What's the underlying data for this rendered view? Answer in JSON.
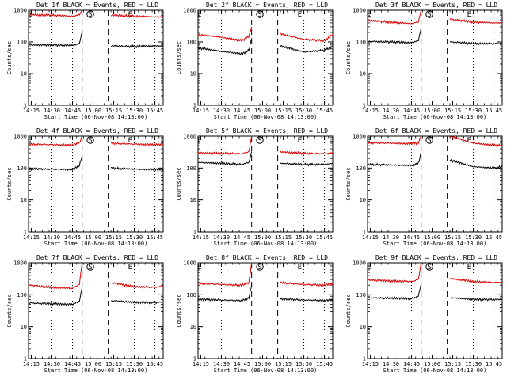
{
  "chart_data": [
    {
      "type": "line",
      "title": "Det 1f BLACK = Events, RED = LLD",
      "xlabel": "Start Time (06-Nov-08 14:13:00)",
      "ylabel": "Counts/sec",
      "yscale": "log",
      "ylim": [
        1,
        1000
      ],
      "xlim": [
        "14:13",
        "15:51"
      ],
      "x_ticks": [
        "14:15",
        "14:30",
        "14:45",
        "15:00",
        "15:15",
        "15:30",
        "15:45"
      ],
      "y_ticks": [
        "1",
        "10",
        "100",
        "1000"
      ],
      "markers": [
        {
          "label": "E",
          "time": "14:14"
        },
        {
          "label": "S",
          "time": "14:58"
        },
        {
          "label": "E",
          "time": "15:27"
        }
      ],
      "dotted_lines": [
        "14:30",
        "14:45",
        "15:30",
        "15:45"
      ],
      "dashed_lines": [
        "14:52",
        "15:11"
      ],
      "gap": [
        "14:52",
        "15:11"
      ],
      "series": [
        {
          "name": "BLACK = Events",
          "color": "#000000",
          "x": [
            "14:13",
            "14:30",
            "14:45",
            "14:50",
            "14:52",
            "15:11",
            "15:13",
            "15:30",
            "15:45",
            "15:51"
          ],
          "y": [
            80,
            80,
            78,
            88,
            210,
            null,
            75,
            72,
            75,
            75
          ]
        },
        {
          "name": "RED = LLD",
          "color": "#dd0000",
          "x": [
            "14:13",
            "14:30",
            "14:45",
            "14:50",
            "14:52",
            "15:11",
            "15:13",
            "15:30",
            "15:45",
            "15:51"
          ],
          "y": [
            720,
            700,
            650,
            720,
            1000,
            null,
            700,
            650,
            620,
            620
          ]
        }
      ]
    },
    {
      "type": "line",
      "title": "Det 2f BLACK = Events, RED = LLD",
      "xlabel": "Start Time (06-Nov-08 14:13:00)",
      "ylabel": "Counts/sec",
      "yscale": "log",
      "ylim": [
        1,
        1000
      ],
      "xlim": [
        "14:13",
        "15:51"
      ],
      "x_ticks": [
        "14:15",
        "14:30",
        "14:45",
        "15:00",
        "15:15",
        "15:30",
        "15:45"
      ],
      "y_ticks": [
        "1",
        "10",
        "100",
        "1000"
      ],
      "markers": [
        {
          "label": "E",
          "time": "14:14"
        },
        {
          "label": "S",
          "time": "14:58"
        },
        {
          "label": "E",
          "time": "15:27"
        }
      ],
      "dotted_lines": [
        "14:30",
        "14:45",
        "15:30",
        "15:45"
      ],
      "dashed_lines": [
        "14:52",
        "15:11"
      ],
      "gap": [
        "14:52",
        "15:11"
      ],
      "series": [
        {
          "name": "BLACK = Events",
          "color": "#000000",
          "x": [
            "14:13",
            "14:30",
            "14:45",
            "14:50",
            "14:52",
            "15:11",
            "15:13",
            "15:30",
            "15:45",
            "15:51"
          ],
          "y": [
            65,
            50,
            42,
            55,
            130,
            null,
            75,
            48,
            55,
            70
          ]
        },
        {
          "name": "RED = LLD",
          "color": "#dd0000",
          "x": [
            "14:13",
            "14:30",
            "14:45",
            "14:50",
            "14:52",
            "15:11",
            "15:13",
            "15:30",
            "15:45",
            "15:51"
          ],
          "y": [
            170,
            140,
            110,
            150,
            300,
            null,
            180,
            120,
            110,
            170
          ]
        }
      ]
    },
    {
      "type": "line",
      "title": "Det 3f BLACK = Events, RED = LLD",
      "xlabel": "Start Time (06-Nov-08 14:13:00)",
      "ylabel": "Counts/sec",
      "yscale": "log",
      "ylim": [
        1,
        1000
      ],
      "xlim": [
        "14:13",
        "15:51"
      ],
      "x_ticks": [
        "14:15",
        "14:30",
        "14:45",
        "15:00",
        "15:15",
        "15:30",
        "15:45"
      ],
      "y_ticks": [
        "1",
        "10",
        "100",
        "1000"
      ],
      "markers": [
        {
          "label": "E",
          "time": "14:14"
        },
        {
          "label": "S",
          "time": "14:58"
        },
        {
          "label": "E",
          "time": "15:27"
        }
      ],
      "dotted_lines": [
        "14:30",
        "14:45",
        "15:30",
        "15:45"
      ],
      "dashed_lines": [
        "14:52",
        "15:11"
      ],
      "gap": [
        "14:52",
        "15:11"
      ],
      "series": [
        {
          "name": "BLACK = Events",
          "color": "#000000",
          "x": [
            "14:13",
            "14:30",
            "14:45",
            "14:50",
            "14:52",
            "15:11",
            "15:13",
            "15:30",
            "15:45",
            "15:51"
          ],
          "y": [
            105,
            100,
            95,
            110,
            280,
            null,
            100,
            90,
            88,
            90
          ]
        },
        {
          "name": "RED = LLD",
          "color": "#dd0000",
          "x": [
            "14:13",
            "14:30",
            "14:45",
            "14:50",
            "14:52",
            "15:11",
            "15:13",
            "15:30",
            "15:45",
            "15:51"
          ],
          "y": [
            480,
            420,
            380,
            430,
            1000,
            null,
            520,
            430,
            400,
            400
          ]
        }
      ]
    },
    {
      "type": "line",
      "title": "Det 4f BLACK = Events, RED = LLD",
      "xlabel": "Start Time (06-Nov-08 14:13:00)",
      "ylabel": "Counts/sec",
      "yscale": "log",
      "ylim": [
        1,
        1000
      ],
      "xlim": [
        "14:13",
        "15:51"
      ],
      "x_ticks": [
        "14:15",
        "14:30",
        "14:45",
        "15:00",
        "15:15",
        "15:30",
        "15:45"
      ],
      "y_ticks": [
        "1",
        "10",
        "100",
        "1000"
      ],
      "markers": [
        {
          "label": "E",
          "time": "14:14"
        },
        {
          "label": "S",
          "time": "14:58"
        },
        {
          "label": "E",
          "time": "15:27"
        }
      ],
      "dotted_lines": [
        "14:30",
        "14:45",
        "15:30",
        "15:45"
      ],
      "dashed_lines": [
        "14:52",
        "15:11"
      ],
      "gap": [
        "14:52",
        "15:11"
      ],
      "series": [
        {
          "name": "BLACK = Events",
          "color": "#000000",
          "x": [
            "14:13",
            "14:30",
            "14:45",
            "14:50",
            "14:52",
            "15:11",
            "15:13",
            "15:30",
            "15:45",
            "15:51"
          ],
          "y": [
            95,
            92,
            90,
            120,
            250,
            null,
            100,
            92,
            90,
            90
          ]
        },
        {
          "name": "RED = LLD",
          "color": "#dd0000",
          "x": [
            "14:13",
            "14:30",
            "14:45",
            "14:50",
            "14:52",
            "15:11",
            "15:13",
            "15:30",
            "15:45",
            "15:51"
          ],
          "y": [
            560,
            540,
            520,
            620,
            1000,
            null,
            600,
            560,
            540,
            540
          ]
        }
      ]
    },
    {
      "type": "line",
      "title": "Det 5f BLACK = Events, RED = LLD",
      "xlabel": "Start Time (06-Nov-08 14:13:00)",
      "ylabel": "Counts/sec",
      "yscale": "log",
      "ylim": [
        1,
        1000
      ],
      "xlim": [
        "14:13",
        "15:51"
      ],
      "x_ticks": [
        "14:15",
        "14:30",
        "14:45",
        "15:00",
        "15:15",
        "15:30",
        "15:45"
      ],
      "y_ticks": [
        "1",
        "10",
        "100",
        "1000"
      ],
      "markers": [
        {
          "label": "E",
          "time": "14:14"
        },
        {
          "label": "S",
          "time": "14:58"
        },
        {
          "label": "E",
          "time": "15:27"
        }
      ],
      "dotted_lines": [
        "14:30",
        "14:45",
        "15:30",
        "15:45"
      ],
      "dashed_lines": [
        "14:52",
        "15:11"
      ],
      "gap": [
        "14:52",
        "15:11"
      ],
      "series": [
        {
          "name": "BLACK = Events",
          "color": "#000000",
          "x": [
            "14:13",
            "14:30",
            "14:45",
            "14:50",
            "14:52",
            "15:11",
            "15:13",
            "15:30",
            "15:45",
            "15:51"
          ],
          "y": [
            150,
            140,
            130,
            150,
            330,
            null,
            140,
            130,
            130,
            140
          ]
        },
        {
          "name": "RED = LLD",
          "color": "#dd0000",
          "x": [
            "14:13",
            "14:30",
            "14:45",
            "14:50",
            "14:52",
            "15:11",
            "15:13",
            "15:30",
            "15:45",
            "15:51"
          ],
          "y": [
            300,
            290,
            280,
            330,
            1000,
            null,
            320,
            290,
            280,
            300
          ]
        }
      ]
    },
    {
      "type": "line",
      "title": "Det 6f BLACK = Events, RED = LLD",
      "xlabel": "Start Time (06-Nov-08 14:13:00)",
      "ylabel": "Counts/sec",
      "yscale": "log",
      "ylim": [
        1,
        1000
      ],
      "xlim": [
        "14:13",
        "15:51"
      ],
      "x_ticks": [
        "14:15",
        "14:30",
        "14:45",
        "15:00",
        "15:15",
        "15:30",
        "15:45"
      ],
      "y_ticks": [
        "1",
        "10",
        "100",
        "1000"
      ],
      "markers": [
        {
          "label": "E",
          "time": "14:14"
        },
        {
          "label": "S",
          "time": "14:58"
        },
        {
          "label": "E",
          "time": "15:27"
        }
      ],
      "dotted_lines": [
        "14:30",
        "14:45",
        "15:30",
        "15:45"
      ],
      "dashed_lines": [
        "14:52",
        "15:11"
      ],
      "gap": [
        "14:52",
        "15:11"
      ],
      "series": [
        {
          "name": "BLACK = Events",
          "color": "#000000",
          "x": [
            "14:13",
            "14:30",
            "14:45",
            "14:50",
            "14:52",
            "15:11",
            "15:13",
            "15:30",
            "15:45",
            "15:51"
          ],
          "y": [
            130,
            125,
            120,
            140,
            300,
            null,
            180,
            110,
            100,
            110
          ]
        },
        {
          "name": "RED = LLD",
          "color": "#dd0000",
          "x": [
            "14:13",
            "14:30",
            "14:45",
            "14:50",
            "14:52",
            "15:11",
            "15:13",
            "15:30",
            "15:45",
            "15:51"
          ],
          "y": [
            620,
            600,
            580,
            620,
            1000,
            null,
            1000,
            600,
            520,
            520
          ]
        }
      ]
    },
    {
      "type": "line",
      "title": "Det 7f BLACK = Events, RED = LLD",
      "xlabel": "Start Time (06-Nov-08 14:13:00)",
      "ylabel": "Counts/sec",
      "yscale": "log",
      "ylim": [
        1,
        1000
      ],
      "xlim": [
        "14:13",
        "15:51"
      ],
      "x_ticks": [
        "14:15",
        "14:30",
        "14:45",
        "15:00",
        "15:15",
        "15:30",
        "15:45"
      ],
      "y_ticks": [
        "1",
        "10",
        "100",
        "1000"
      ],
      "markers": [
        {
          "label": "E",
          "time": "14:14"
        },
        {
          "label": "S",
          "time": "14:58"
        },
        {
          "label": "E",
          "time": "15:27"
        }
      ],
      "dotted_lines": [
        "14:30",
        "14:45",
        "15:30",
        "15:45"
      ],
      "dashed_lines": [
        "14:52",
        "15:11"
      ],
      "gap": [
        "14:52",
        "15:11"
      ],
      "series": [
        {
          "name": "BLACK = Events",
          "color": "#000000",
          "x": [
            "14:13",
            "14:30",
            "14:45",
            "14:50",
            "14:52",
            "15:11",
            "15:13",
            "15:30",
            "15:45",
            "15:51"
          ],
          "y": [
            55,
            52,
            50,
            62,
            170,
            null,
            65,
            58,
            56,
            60
          ]
        },
        {
          "name": "RED = LLD",
          "color": "#dd0000",
          "x": [
            "14:13",
            "14:30",
            "14:45",
            "14:50",
            "14:52",
            "15:11",
            "15:13",
            "15:30",
            "15:45",
            "15:51"
          ],
          "y": [
            200,
            170,
            160,
            210,
            1000,
            null,
            240,
            180,
            170,
            190
          ]
        }
      ]
    },
    {
      "type": "line",
      "title": "Det 8f BLACK = Events, RED = LLD",
      "xlabel": "Start Time (06-Nov-08 14:13:00)",
      "ylabel": "Counts/sec",
      "yscale": "log",
      "ylim": [
        1,
        1000
      ],
      "xlim": [
        "14:13",
        "15:51"
      ],
      "x_ticks": [
        "14:15",
        "14:30",
        "14:45",
        "15:00",
        "15:15",
        "15:30",
        "15:45"
      ],
      "y_ticks": [
        "1",
        "10",
        "100",
        "1000"
      ],
      "markers": [
        {
          "label": "E",
          "time": "14:14"
        },
        {
          "label": "S",
          "time": "14:58"
        },
        {
          "label": "E",
          "time": "15:27"
        }
      ],
      "dotted_lines": [
        "14:30",
        "14:45",
        "15:30",
        "15:45"
      ],
      "dashed_lines": [
        "14:52",
        "15:11"
      ],
      "gap": [
        "14:52",
        "15:11"
      ],
      "series": [
        {
          "name": "BLACK = Events",
          "color": "#000000",
          "x": [
            "14:13",
            "14:30",
            "14:45",
            "14:50",
            "14:52",
            "15:11",
            "15:13",
            "15:30",
            "15:45",
            "15:51"
          ],
          "y": [
            72,
            68,
            65,
            80,
            200,
            null,
            75,
            68,
            66,
            68
          ]
        },
        {
          "name": "RED = LLD",
          "color": "#dd0000",
          "x": [
            "14:13",
            "14:30",
            "14:45",
            "14:50",
            "14:52",
            "15:11",
            "15:13",
            "15:30",
            "15:45",
            "15:51"
          ],
          "y": [
            230,
            210,
            200,
            240,
            1000,
            null,
            240,
            210,
            200,
            220
          ]
        }
      ]
    },
    {
      "type": "line",
      "title": "Det 9f BLACK = Events, RED = LLD",
      "xlabel": "Start Time (06-Nov-08 14:13:00)",
      "ylabel": "Counts/sec",
      "yscale": "log",
      "ylim": [
        1,
        1000
      ],
      "xlim": [
        "14:13",
        "15:51"
      ],
      "x_ticks": [
        "14:15",
        "14:30",
        "14:45",
        "15:00",
        "15:15",
        "15:30",
        "15:45"
      ],
      "y_ticks": [
        "1",
        "10",
        "100",
        "1000"
      ],
      "markers": [
        {
          "label": "E",
          "time": "14:14"
        },
        {
          "label": "S",
          "time": "14:58"
        },
        {
          "label": "E",
          "time": "15:27"
        }
      ],
      "dotted_lines": [
        "14:30",
        "14:45",
        "15:30",
        "15:45"
      ],
      "dashed_lines": [
        "14:52",
        "15:11"
      ],
      "gap": [
        "14:52",
        "15:11"
      ],
      "series": [
        {
          "name": "BLACK = Events",
          "color": "#000000",
          "x": [
            "14:13",
            "14:30",
            "14:45",
            "14:50",
            "14:52",
            "15:11",
            "15:13",
            "15:30",
            "15:45",
            "15:51"
          ],
          "y": [
            80,
            78,
            75,
            90,
            220,
            null,
            80,
            72,
            70,
            72
          ]
        },
        {
          "name": "RED = LLD",
          "color": "#dd0000",
          "x": [
            "14:13",
            "14:30",
            "14:45",
            "14:50",
            "14:52",
            "15:11",
            "15:13",
            "15:30",
            "15:45",
            "15:51"
          ],
          "y": [
            290,
            270,
            260,
            300,
            1000,
            null,
            320,
            260,
            240,
            250
          ]
        }
      ]
    }
  ]
}
